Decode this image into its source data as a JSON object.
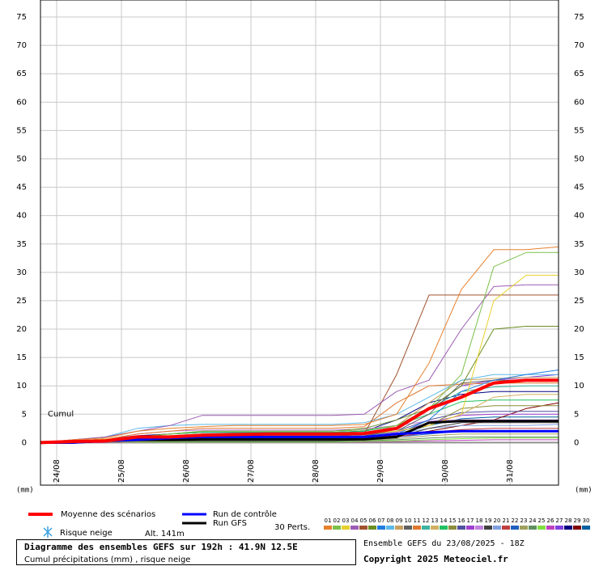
{
  "chart_data": {
    "type": "line",
    "title": "Diagramme des ensembles GEFS sur 192h : 41.9N 12.5E",
    "subtitle": "Cumul précipitations (mm) , risque neige",
    "run_info": "Ensemble GEFS du 23/08/2025 - 18Z",
    "copyright": "Copyright 2025 Meteociel.fr",
    "annotation": "Cumul",
    "y_label": "(mm)",
    "snow_label": "Risque neige",
    "altitude": "Alt. 141m",
    "perturbations_label": "30 Perts.",
    "x": [
      0,
      12,
      24,
      36,
      48,
      60,
      72,
      84,
      96,
      108,
      120,
      132,
      144,
      156,
      168,
      180,
      192
    ],
    "xlim": [
      0,
      192
    ],
    "xticks": [
      {
        "value": 6,
        "label": "24/08"
      },
      {
        "value": 30,
        "label": "25/08"
      },
      {
        "value": 54,
        "label": "26/08"
      },
      {
        "value": 78,
        "label": "27/08"
      },
      {
        "value": 102,
        "label": "28/08"
      },
      {
        "value": 126,
        "label": "29/08"
      },
      {
        "value": 150,
        "label": "30/08"
      },
      {
        "value": 174,
        "label": "31/08"
      }
    ],
    "ylim": [
      -7.5,
      78
    ],
    "yticks": [
      0,
      5,
      10,
      15,
      20,
      25,
      30,
      35,
      40,
      45,
      50,
      55,
      60,
      65,
      70,
      75
    ],
    "grid": true,
    "series": [
      {
        "name": "Moyenne des scénarios",
        "color": "#ff0000",
        "values": [
          0,
          0.2,
          0.3,
          1,
          1,
          1.3,
          1.4,
          1.5,
          1.5,
          1.5,
          1.6,
          2.5,
          6,
          8,
          10.5,
          11,
          11
        ]
      },
      {
        "name": "Run de contrôle",
        "color": "#0000ff",
        "values": [
          0,
          0,
          0.3,
          0.5,
          0.8,
          1,
          1,
          1,
          1,
          1,
          1,
          1.5,
          1.8,
          2,
          2,
          2,
          2
        ]
      },
      {
        "name": "Run GFS",
        "color": "#000000",
        "values": [
          0,
          0,
          0.3,
          0.5,
          0.5,
          0.6,
          0.6,
          0.6,
          0.6,
          0.6,
          0.6,
          1,
          3.5,
          3.8,
          3.8,
          3.8,
          3.8
        ]
      },
      {
        "name": "01",
        "color": "#e8802c",
        "values": [
          0,
          0.5,
          0.8,
          2,
          2.5,
          2.8,
          3,
          3,
          3,
          3,
          3.2,
          5,
          14,
          27,
          34,
          34,
          34.5
        ]
      },
      {
        "name": "02",
        "color": "#7cc04c",
        "values": [
          0,
          0.3,
          0.5,
          1,
          1.5,
          2,
          2,
          2,
          2,
          2,
          2.2,
          3,
          6,
          12,
          31,
          33.5,
          33.5
        ]
      },
      {
        "name": "03",
        "color": "#e8d02c",
        "values": [
          0,
          0.3,
          0.6,
          1,
          1.2,
          1.5,
          1.5,
          1.5,
          1.5,
          1.5,
          1.6,
          2,
          3,
          5,
          25,
          29.5,
          29.5
        ]
      },
      {
        "name": "04",
        "color": "#9c5cb4",
        "values": [
          0,
          0.5,
          1,
          2,
          3,
          4.8,
          4.8,
          4.8,
          4.8,
          4.8,
          5,
          9,
          11,
          20,
          27.5,
          27.8,
          27.8
        ]
      },
      {
        "name": "05",
        "color": "#a0522d",
        "values": [
          0,
          0.3,
          0.5,
          1,
          1,
          1,
          1,
          1,
          1,
          1,
          1.5,
          12,
          26,
          26,
          26,
          26,
          26
        ]
      },
      {
        "name": "06",
        "color": "#6b8e23",
        "values": [
          0,
          0.3,
          0.5,
          1,
          1.5,
          2,
          2,
          2,
          2,
          2,
          2.5,
          4,
          6,
          10,
          20,
          20.5,
          20.5
        ]
      },
      {
        "name": "07",
        "color": "#1e7ce0",
        "values": [
          0,
          0.2,
          0.3,
          0.5,
          0.5,
          0.5,
          0.5,
          0.5,
          0.5,
          0.5,
          0.8,
          1.5,
          4,
          9,
          11,
          12,
          12.8
        ]
      },
      {
        "name": "08",
        "color": "#5cb8e8",
        "values": [
          0,
          0.5,
          1,
          2.5,
          3,
          3.2,
          3.2,
          3.2,
          3.2,
          3.2,
          3.5,
          5,
          8,
          11,
          12,
          12,
          12
        ]
      },
      {
        "name": "09",
        "color": "#c8a060",
        "values": [
          0,
          0.3,
          0.5,
          1,
          1,
          1.2,
          1.2,
          1.2,
          1.2,
          1.2,
          1.5,
          3,
          7,
          11,
          11.3,
          11.5,
          11.5
        ]
      },
      {
        "name": "10",
        "color": "#606060",
        "values": [
          0,
          0.2,
          0.4,
          0.8,
          1,
          1,
          1,
          1,
          1,
          1,
          1.2,
          2,
          5,
          10.5,
          11,
          11,
          11
        ]
      },
      {
        "name": "11",
        "color": "#e07830",
        "values": [
          0,
          0.3,
          0.6,
          1.5,
          2,
          2.5,
          2.5,
          2.5,
          2.5,
          2.5,
          2.8,
          7,
          10,
          10.3,
          10.5,
          10.5,
          10.5
        ]
      },
      {
        "name": "12",
        "color": "#3cb4a0",
        "values": [
          0,
          0.2,
          0.3,
          0.5,
          0.6,
          0.8,
          0.8,
          0.8,
          0.8,
          0.8,
          1,
          2.5,
          6,
          9,
          9.8,
          10,
          10
        ]
      },
      {
        "name": "13",
        "color": "#d0b060",
        "values": [
          0,
          0.2,
          0.4,
          0.6,
          0.8,
          1,
          1,
          1,
          1,
          1,
          1.2,
          2,
          3,
          5,
          8,
          8.5,
          8.5
        ]
      },
      {
        "name": "14",
        "color": "#20c060",
        "values": [
          0,
          0.3,
          0.5,
          1,
          1.5,
          1.8,
          1.8,
          1.8,
          1.8,
          1.8,
          2,
          3,
          5,
          7.2,
          7.5,
          7.5,
          7.5
        ]
      },
      {
        "name": "15",
        "color": "#8c8c3c",
        "values": [
          0,
          0.1,
          0.2,
          0.4,
          0.5,
          0.5,
          0.5,
          0.5,
          0.5,
          0.5,
          0.7,
          1.5,
          3,
          6,
          6.5,
          6.5,
          6.5
        ]
      },
      {
        "name": "16",
        "color": "#5050a0",
        "values": [
          0,
          0.2,
          0.4,
          0.8,
          1,
          1.2,
          1.2,
          1.2,
          1.2,
          1.2,
          1.4,
          2,
          4,
          5.3,
          5.5,
          5.5,
          5.5
        ]
      },
      {
        "name": "17",
        "color": "#a040d0",
        "values": [
          0,
          0.1,
          0.3,
          0.5,
          0.7,
          0.8,
          0.8,
          0.8,
          0.8,
          0.8,
          1,
          1.8,
          3.5,
          4.8,
          5,
          5,
          5
        ]
      },
      {
        "name": "18",
        "color": "#c080e0",
        "values": [
          0,
          0.2,
          0.5,
          1.5,
          2,
          2.2,
          2.2,
          2.2,
          2.2,
          2.2,
          2.4,
          3,
          3.8,
          4,
          4,
          4,
          4
        ]
      },
      {
        "name": "19",
        "color": "#404040",
        "values": [
          0,
          0.1,
          0.2,
          0.3,
          0.3,
          0.3,
          0.3,
          0.3,
          0.3,
          0.3,
          0.5,
          1,
          2.5,
          3.5,
          3.5,
          3.5,
          3.5
        ]
      },
      {
        "name": "20",
        "color": "#80a0e0",
        "values": [
          0,
          0.2,
          0.3,
          0.6,
          0.8,
          1,
          1,
          1,
          1,
          1,
          1.1,
          1.5,
          2.5,
          3,
          3,
          3,
          3.2
        ]
      },
      {
        "name": "21",
        "color": "#c04040",
        "values": [
          0,
          0.1,
          0.2,
          0.3,
          0.4,
          0.5,
          0.5,
          0.5,
          0.5,
          0.5,
          0.6,
          1,
          1.8,
          2.3,
          2.5,
          2.5,
          2.5
        ]
      },
      {
        "name": "22",
        "color": "#2060c0",
        "values": [
          0,
          0.1,
          0.2,
          0.4,
          0.5,
          0.6,
          0.6,
          0.6,
          0.6,
          0.6,
          0.7,
          1,
          1.5,
          2,
          2,
          2,
          2
        ]
      },
      {
        "name": "23",
        "color": "#a0a060",
        "values": [
          0,
          0.1,
          0.1,
          0.2,
          0.3,
          0.3,
          0.3,
          0.3,
          0.3,
          0.3,
          0.4,
          0.7,
          1.2,
          1.5,
          1.5,
          1.5,
          1.5
        ]
      },
      {
        "name": "24",
        "color": "#609060",
        "values": [
          0,
          0,
          0.1,
          0.2,
          0.2,
          0.2,
          0.2,
          0.2,
          0.2,
          0.2,
          0.3,
          0.5,
          0.8,
          1,
          1,
          1,
          1
        ]
      },
      {
        "name": "25",
        "color": "#80e040",
        "values": [
          0,
          0,
          0.1,
          0.1,
          0.1,
          0.1,
          0.1,
          0.1,
          0.1,
          0.1,
          0.2,
          0.3,
          0.5,
          0.7,
          0.8,
          0.8,
          0.8
        ]
      },
      {
        "name": "26",
        "color": "#c040c0",
        "values": [
          0,
          0,
          0,
          0.1,
          0.1,
          0.1,
          0.1,
          0.1,
          0.1,
          0.1,
          0.1,
          0.2,
          0.3,
          0.4,
          0.5,
          0.5,
          0.5
        ]
      },
      {
        "name": "27",
        "color": "#8040e0",
        "values": [
          0,
          0.2,
          0.4,
          0.8,
          1,
          1.2,
          1.2,
          1.2,
          1.2,
          1.2,
          1.5,
          3,
          6,
          10,
          11,
          11.5,
          12
        ]
      },
      {
        "name": "28",
        "color": "#000080",
        "values": [
          0,
          0.3,
          0.6,
          1.2,
          1.5,
          1.8,
          1.8,
          1.8,
          1.8,
          1.8,
          2,
          4,
          7,
          8.5,
          9,
          9,
          9
        ]
      },
      {
        "name": "29",
        "color": "#800000",
        "values": [
          0,
          0.2,
          0.3,
          0.5,
          0.6,
          0.7,
          0.7,
          0.7,
          0.7,
          0.7,
          0.8,
          1.2,
          2,
          3,
          4,
          6,
          7
        ]
      },
      {
        "name": "30",
        "color": "#0060a0",
        "values": [
          0,
          0.1,
          0.2,
          0.4,
          0.5,
          0.6,
          0.6,
          0.6,
          0.6,
          0.6,
          0.8,
          1.5,
          3,
          4.2,
          4.5,
          4.5,
          4.5
        ]
      }
    ]
  }
}
